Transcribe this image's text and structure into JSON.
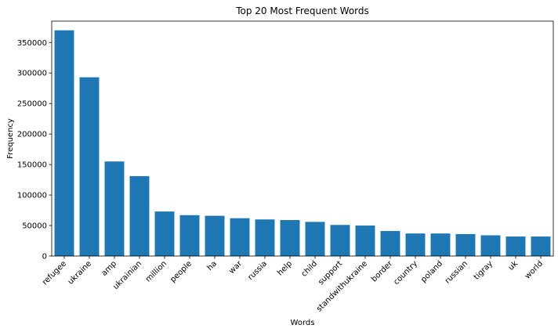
{
  "chart_data": {
    "type": "bar",
    "title": "Top 20 Most Frequent Words",
    "xlabel": "Words",
    "ylabel": "Frequency",
    "categories": [
      "refugee",
      "ukraine",
      "amp",
      "ukrainian",
      "million",
      "people",
      "ha",
      "war",
      "russia",
      "help",
      "child",
      "support",
      "standwithukraine",
      "border",
      "country",
      "poland",
      "russian",
      "tigray",
      "uk",
      "world"
    ],
    "values": [
      370000,
      293000,
      155000,
      131000,
      73000,
      67000,
      66000,
      62000,
      60000,
      59000,
      56000,
      51000,
      50000,
      41000,
      37000,
      37000,
      36000,
      34000,
      32000,
      32000
    ],
    "ylim": [
      0,
      385000
    ],
    "yticks": [
      0,
      50000,
      100000,
      150000,
      200000,
      250000,
      300000,
      350000
    ],
    "ytick_labels": [
      "0",
      "50000",
      "100000",
      "150000",
      "200000",
      "250000",
      "300000",
      "350000"
    ],
    "bar_color": "#1f77b4",
    "grid": false,
    "legend": "none",
    "xtick_rotation": 45
  }
}
